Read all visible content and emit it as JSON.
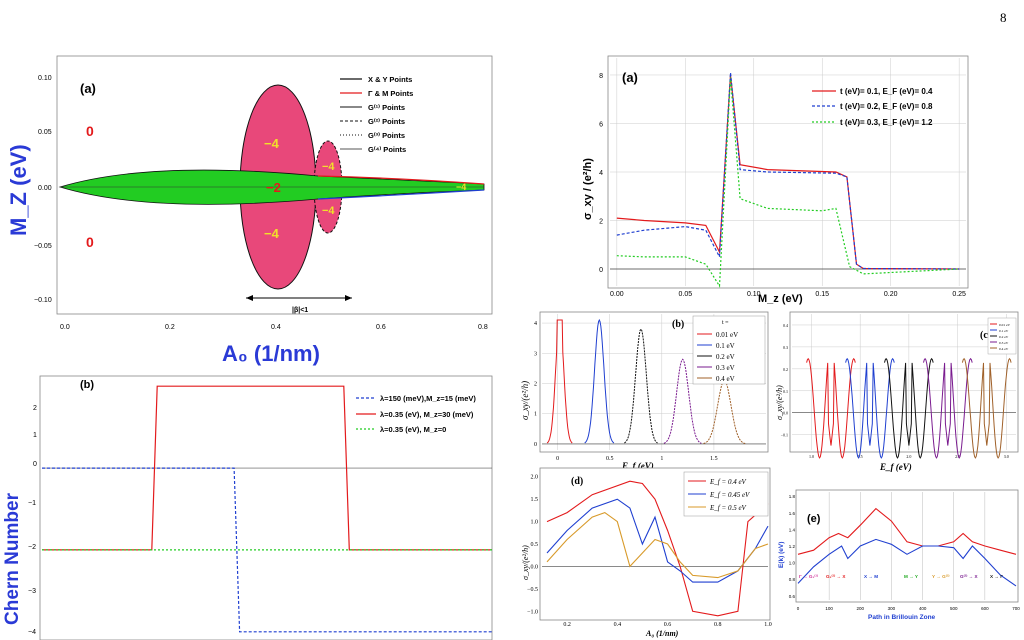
{
  "page_number": "8",
  "colors": {
    "red": "#e31a1c",
    "blue": "#1f3fd0",
    "green": "#22cc22",
    "pink": "#e8487a",
    "magenta": "#d0339a",
    "purple": "#7a1b8f",
    "orange": "#d89a2a",
    "brown": "#a0612a",
    "axisblue": "#2a3ad6",
    "gridgray": "#cccccc"
  },
  "chart_data": [
    {
      "id": "phase-diagram",
      "type": "area",
      "panel_label": "(a)",
      "xlabel": "A₀ (1/nm)",
      "ylabel": "M_Z (eV)",
      "xlim": [
        0,
        0.82
      ],
      "ylim": [
        -0.11,
        0.11
      ],
      "xticks": [
        "0.0",
        "0.2",
        "0.4",
        "0.6",
        "0.8"
      ],
      "yticks": [
        "−0.10",
        "−0.05",
        "0.00",
        "0.05",
        "0.10"
      ],
      "legend": [
        "X & Y Points",
        "Γ & M Points",
        "G⁽¹⁾ Points",
        "G⁽²⁾ Points",
        "G⁽³⁾ Points",
        "G⁽⁴⁾ Points"
      ],
      "region_labels": [
        "0",
        "0",
        "−4",
        "−2",
        "−4",
        "−4",
        "−4",
        "−4"
      ],
      "annotation": "|β|<1"
    },
    {
      "id": "chern-number",
      "type": "line",
      "panel_label": "(b)",
      "ylabel": "Chern Number",
      "xlim": [
        0,
        0.82
      ],
      "ylim": [
        -4.2,
        2.2
      ],
      "yticks": [
        "2",
        "1",
        "0",
        "−1",
        "−2",
        "−3",
        "−4"
      ],
      "series": [
        {
          "name": "λ=150 (meV),M_z=15 (meV)",
          "x": [
            0,
            0.35,
            0.36,
            0.82
          ],
          "y": [
            0,
            0,
            -4,
            -4
          ]
        },
        {
          "name": "λ=0.35 (eV), M_z=30 (meV)",
          "x": [
            0,
            0.2,
            0.21,
            0.55,
            0.56,
            0.82
          ],
          "y": [
            -2,
            -2,
            2,
            2,
            -2,
            -2
          ]
        },
        {
          "name": "λ=0.35 (eV), M_z=0",
          "x": [
            0,
            0.82
          ],
          "y": [
            -2,
            -2
          ]
        }
      ]
    },
    {
      "id": "sigma-vs-mz",
      "type": "line",
      "panel_label": "(a)",
      "xlabel": "M_z (eV)",
      "ylabel": "σ_xy / (e²/h)",
      "xlim": [
        -0.005,
        0.255
      ],
      "ylim": [
        -0.7,
        8.7
      ],
      "xticks": [
        "0.00",
        "0.05",
        "0.10",
        "0.15",
        "0.20",
        "0.25"
      ],
      "yticks": [
        "0",
        "2",
        "4",
        "6",
        "8"
      ],
      "series": [
        {
          "name": "t (eV)= 0.1, E_F (eV)= 0.4",
          "x": [
            0,
            0.02,
            0.05,
            0.065,
            0.075,
            0.083,
            0.09,
            0.11,
            0.16,
            0.168,
            0.175,
            0.18,
            0.25
          ],
          "y": [
            2.1,
            2.0,
            1.9,
            1.8,
            0.7,
            8.0,
            4.3,
            4.1,
            4.0,
            3.8,
            0.2,
            0.02,
            0
          ]
        },
        {
          "name": "t (eV)= 0.2, E_F (eV)= 0.8",
          "x": [
            0,
            0.02,
            0.05,
            0.065,
            0.075,
            0.083,
            0.09,
            0.11,
            0.16,
            0.168,
            0.175,
            0.18,
            0.25
          ],
          "y": [
            1.4,
            1.6,
            1.75,
            1.6,
            0.5,
            8.1,
            4.1,
            4.0,
            3.95,
            3.8,
            0.2,
            0.02,
            0
          ]
        },
        {
          "name": "t (eV)= 0.3, E_F (eV)= 1.2",
          "x": [
            0,
            0.02,
            0.05,
            0.065,
            0.075,
            0.083,
            0.09,
            0.11,
            0.15,
            0.16,
            0.17,
            0.18,
            0.25
          ],
          "y": [
            0.55,
            0.5,
            0.5,
            0.2,
            -0.7,
            7.9,
            2.9,
            2.5,
            2.4,
            2.5,
            0.1,
            -0.2,
            0
          ]
        }
      ]
    },
    {
      "id": "sigma-vs-ef-b",
      "type": "line",
      "panel_label": "(b)",
      "xlabel": "E_f (eV)",
      "ylabel": "σ_xy/(e²/h)",
      "xlim": [
        -0.15,
        2.0
      ],
      "ylim": [
        -0.2,
        4.3
      ],
      "xticks": [
        "0",
        "0.5",
        "1",
        "1.5"
      ],
      "yticks": [
        "0",
        "1",
        "2",
        "3",
        "4"
      ],
      "legend_title": "t =",
      "series": [
        {
          "name": "0.01 eV",
          "peak": 0.02,
          "height": 4.1
        },
        {
          "name": "0.1 eV",
          "peak": 0.4,
          "height": 4.1
        },
        {
          "name": "0.2 eV",
          "peak": 0.8,
          "height": 3.8
        },
        {
          "name": "0.3 eV",
          "peak": 1.2,
          "height": 2.8
        },
        {
          "name": "0.4 eV",
          "peak": 1.6,
          "height": 2.1
        }
      ]
    },
    {
      "id": "sigma-vs-ef-c",
      "type": "line",
      "panel_label": "(c)",
      "xlabel": "E_f (eV)",
      "ylabel": "σ_xy/(e²/h)",
      "xlim": [
        0.8,
        3.1
      ],
      "ylim": [
        -0.17,
        0.45
      ],
      "xticks": [
        "1.0",
        "1.5",
        "2.0",
        "2.5",
        "3.0"
      ],
      "yticks": [
        "−0.1",
        "0.0",
        "0.1",
        "0.2",
        "0.3",
        "0.4"
      ],
      "legend": [
        "0.01 eV",
        "0.1 eV",
        "0.2 eV",
        "0.3 eV",
        "0.4 eV"
      ]
    },
    {
      "id": "sigma-vs-a0",
      "type": "line",
      "panel_label": "(d)",
      "xlabel": "A₀ (1/nm)",
      "ylabel": "σ_xy/(e²/h)",
      "xlim": [
        0.1,
        1.0
      ],
      "ylim": [
        -1.15,
        2.15
      ],
      "xticks": [
        "0.2",
        "0.4",
        "0.6",
        "0.8",
        "1.0"
      ],
      "yticks": [
        "−1.0",
        "−0.5",
        "0.0",
        "0.5",
        "1.0",
        "1.5",
        "2.0"
      ],
      "series": [
        {
          "name": "E_f = 0.4 eV",
          "x": [
            0.12,
            0.2,
            0.3,
            0.45,
            0.5,
            0.55,
            0.6,
            0.65,
            0.7,
            0.8,
            0.88,
            0.92,
            1.0
          ],
          "y": [
            1.0,
            1.2,
            1.6,
            1.9,
            1.85,
            1.5,
            0.8,
            0.0,
            -1.0,
            -1.1,
            -1.0,
            1.0,
            1.4
          ]
        },
        {
          "name": "E_f = 0.45 eV",
          "x": [
            0.12,
            0.2,
            0.3,
            0.4,
            0.45,
            0.5,
            0.55,
            0.6,
            0.65,
            0.7,
            0.8,
            0.88,
            0.95,
            1.0
          ],
          "y": [
            0.3,
            0.8,
            1.3,
            1.5,
            1.3,
            0.5,
            1.1,
            0.1,
            -0.1,
            -0.35,
            -0.35,
            -0.1,
            0.4,
            0.9
          ]
        },
        {
          "name": "E_f = 0.5 eV",
          "x": [
            0.12,
            0.2,
            0.3,
            0.35,
            0.4,
            0.45,
            0.5,
            0.55,
            0.6,
            0.65,
            0.7,
            0.8,
            0.88,
            0.95,
            1.0
          ],
          "y": [
            0.1,
            0.6,
            1.1,
            1.2,
            1.0,
            0.0,
            0.3,
            0.6,
            0.5,
            0.1,
            -0.2,
            -0.25,
            -0.1,
            0.4,
            0.5
          ]
        }
      ]
    },
    {
      "id": "band-path",
      "type": "line",
      "panel_label": "(e)",
      "xlabel": "Path in Brillouin Zone",
      "ylabel": "E(k) (eV)",
      "xlim": [
        0,
        700
      ],
      "ylim": [
        0.55,
        1.85
      ],
      "xticks": [
        "0",
        "100",
        "200",
        "300",
        "400",
        "500",
        "600",
        "700"
      ],
      "yticks": [
        "0.6",
        "0.8",
        "1.0",
        "1.2",
        "1.4",
        "1.6",
        "1.8"
      ],
      "path_labels": [
        {
          "text": "Γ → G₁⁽¹⁾",
          "color": "#d0339a"
        },
        {
          "text": "G₁⁽¹⁾ → X",
          "color": "#e31a1c"
        },
        {
          "text": "X → M",
          "color": "#1f3fd0"
        },
        {
          "text": "M → Y",
          "color": "#22aa22"
        },
        {
          "text": "Y → G⁽²⁾",
          "color": "#d89a2a"
        },
        {
          "text": "G⁽²⁾ → X",
          "color": "#7a1b8f"
        },
        {
          "text": "X → Γ",
          "color": "#222222"
        }
      ],
      "series": [
        {
          "name": "upper",
          "x": [
            0,
            50,
            100,
            130,
            160,
            200,
            250,
            300,
            350,
            400,
            450,
            500,
            530,
            560,
            600,
            650,
            700
          ],
          "y": [
            1.1,
            1.15,
            1.3,
            1.35,
            1.3,
            1.45,
            1.65,
            1.5,
            1.25,
            1.2,
            1.2,
            1.25,
            1.35,
            1.25,
            1.2,
            1.15,
            1.1
          ]
        },
        {
          "name": "lower",
          "x": [
            0,
            50,
            100,
            140,
            160,
            200,
            250,
            300,
            350,
            400,
            450,
            500,
            530,
            560,
            600,
            650,
            700
          ],
          "y": [
            0.75,
            0.95,
            1.1,
            1.2,
            1.05,
            1.2,
            1.28,
            1.22,
            1.1,
            1.2,
            1.2,
            1.18,
            1.05,
            1.2,
            1.05,
            0.85,
            0.72
          ]
        }
      ]
    }
  ]
}
